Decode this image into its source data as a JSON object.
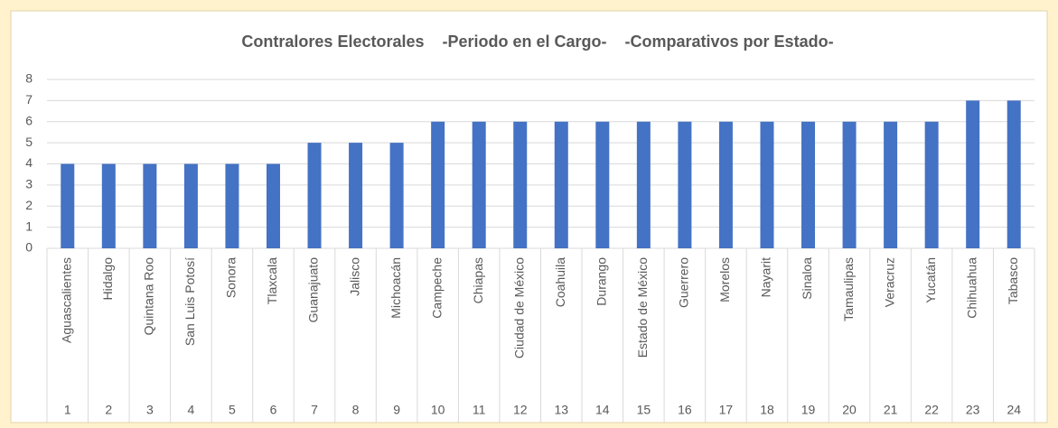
{
  "chart_data": {
    "type": "bar",
    "title": "Contralores Electorales    -Periodo en el Cargo-    -Comparativos por Estado-",
    "categories": [
      "Aguascalientes",
      "Hidalgo",
      "Quintana Roo",
      "San Luis Potosí",
      "Sonora",
      "Tlaxcala",
      "Guanajuato",
      "Jalisco",
      "Michoacán",
      "Campeche",
      "Chiapas",
      "Ciudad de México",
      "Coahuila",
      "Durango",
      "Estado de México",
      "Guerrero",
      "Morelos",
      "Nayarit",
      "Sinaloa",
      "Tamaulipas",
      "Veracruz",
      "Yucatán",
      "Chihuahua",
      "Tabasco"
    ],
    "category_numbers": [
      1,
      2,
      3,
      4,
      5,
      6,
      7,
      8,
      9,
      10,
      11,
      12,
      13,
      14,
      15,
      16,
      17,
      18,
      19,
      20,
      21,
      22,
      23,
      24
    ],
    "values": [
      4,
      4,
      4,
      4,
      4,
      4,
      5,
      5,
      5,
      6,
      6,
      6,
      6,
      6,
      6,
      6,
      6,
      6,
      6,
      6,
      6,
      6,
      7,
      7
    ],
    "color": "#4472c4",
    "ylim": [
      0,
      8
    ],
    "yticks": [
      0,
      1,
      2,
      3,
      4,
      5,
      6,
      7,
      8
    ],
    "grid": true
  }
}
